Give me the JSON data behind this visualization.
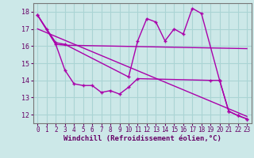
{
  "background_color": "#cce8e8",
  "grid_color": "#aad4d4",
  "line_color": "#aa00aa",
  "xlabel": "Windchill (Refroidissement éolien,°C)",
  "ylim": [
    11.5,
    18.5
  ],
  "xlim": [
    -0.5,
    23.5
  ],
  "yticks": [
    12,
    13,
    14,
    15,
    16,
    17,
    18
  ],
  "xticks": [
    0,
    1,
    2,
    3,
    4,
    5,
    6,
    7,
    8,
    9,
    10,
    11,
    12,
    13,
    14,
    15,
    16,
    17,
    18,
    19,
    20,
    21,
    22,
    23
  ],
  "series1_x": [
    0,
    1,
    2,
    3,
    10,
    11,
    12,
    13,
    14,
    15,
    16,
    17,
    18,
    20,
    21,
    22,
    23
  ],
  "series1_y": [
    17.8,
    17.0,
    16.2,
    16.1,
    14.2,
    16.3,
    17.6,
    17.4,
    16.3,
    17.0,
    16.7,
    18.2,
    17.9,
    14.0,
    12.2,
    11.95,
    11.75
  ],
  "series2_x": [
    0,
    2,
    3,
    23
  ],
  "series2_y": [
    17.8,
    16.1,
    16.05,
    15.85
  ],
  "series3_x": [
    0,
    2,
    3,
    4,
    5,
    6,
    7,
    8,
    9,
    10,
    11,
    19,
    20,
    21,
    22,
    23
  ],
  "series3_y": [
    17.8,
    16.1,
    14.6,
    13.8,
    13.7,
    13.7,
    13.3,
    13.4,
    13.2,
    13.6,
    14.1,
    14.0,
    14.0,
    12.2,
    11.95,
    11.75
  ],
  "series4_x": [
    0,
    23
  ],
  "series4_y": [
    17.0,
    11.9
  ]
}
